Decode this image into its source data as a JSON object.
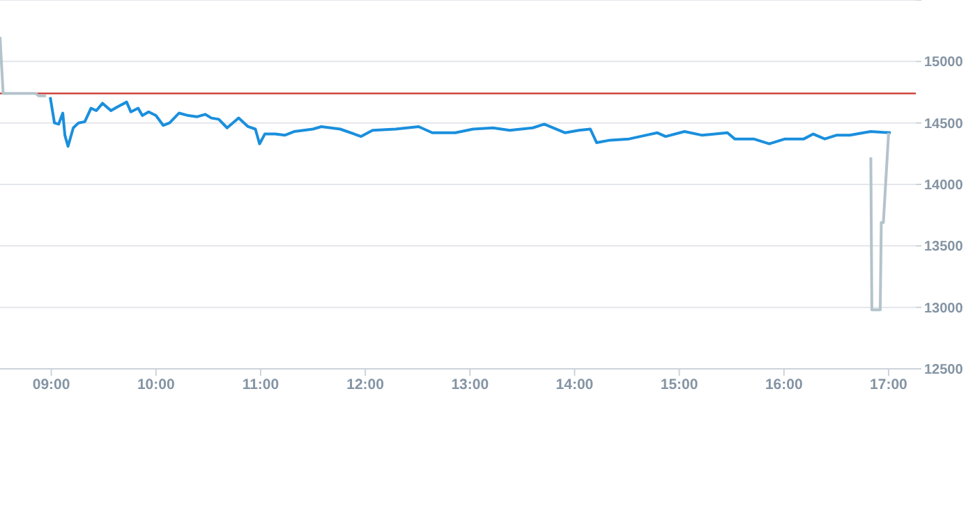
{
  "chart_data": {
    "type": "line",
    "xlim": [
      8.51,
      17.26
    ],
    "xticks": [
      {
        "value": 9,
        "label": "09:00"
      },
      {
        "value": 10,
        "label": "10:00"
      },
      {
        "value": 11,
        "label": "11:00"
      },
      {
        "value": 12,
        "label": "12:00"
      },
      {
        "value": 13,
        "label": "13:00"
      },
      {
        "value": 14,
        "label": "14:00"
      },
      {
        "value": 15,
        "label": "15:00"
      },
      {
        "value": 16,
        "label": "16:00"
      },
      {
        "value": 17,
        "label": "17:00"
      }
    ],
    "ylim": [
      12500,
      15500
    ],
    "yticks": [
      12500,
      13000,
      13500,
      14000,
      14500,
      15000,
      {
        "value": 15500,
        "label": null
      }
    ],
    "grid": "y",
    "marker": "none",
    "line_style": "solid",
    "ref_lines": [
      {
        "axis": "y",
        "value": 14740,
        "color": "#d0463c"
      }
    ],
    "series": [
      {
        "color": "#b4c3cc",
        "x": [
          8.51,
          8.54,
          8.85,
          8.88,
          8.95
        ],
        "values": [
          15200,
          14740,
          14740,
          14720,
          14720
        ]
      },
      {
        "color": "#1a8fdd",
        "x": [
          8.99,
          9.03,
          9.07,
          9.11,
          9.13,
          9.16,
          9.21,
          9.26,
          9.32,
          9.38,
          9.43,
          9.49,
          9.57,
          9.63,
          9.72,
          9.76,
          9.83,
          9.87,
          9.93,
          10.0,
          10.07,
          10.13,
          10.22,
          10.31,
          10.39,
          10.47,
          10.53,
          10.6,
          10.68,
          10.79,
          10.88,
          10.95,
          10.99,
          11.04,
          11.14,
          11.23,
          11.32,
          11.5,
          11.58,
          11.76,
          11.96,
          12.07,
          12.29,
          12.51,
          12.64,
          12.86,
          13.03,
          13.22,
          13.38,
          13.6,
          13.71,
          13.91,
          14.04,
          14.15,
          14.21,
          14.34,
          14.52,
          14.68,
          14.79,
          14.87,
          15.05,
          15.22,
          15.46,
          15.53,
          15.71,
          15.86,
          16.01,
          16.19,
          16.28,
          16.39,
          16.5,
          16.63,
          16.76,
          16.83,
          17.02
        ],
        "values": [
          14710,
          14500,
          14490,
          14580,
          14400,
          14310,
          14460,
          14500,
          14510,
          14620,
          14600,
          14660,
          14600,
          14630,
          14670,
          14590,
          14620,
          14560,
          14590,
          14560,
          14480,
          14500,
          14580,
          14560,
          14550,
          14570,
          14540,
          14530,
          14460,
          14540,
          14470,
          14450,
          14330,
          14410,
          14410,
          14400,
          14430,
          14450,
          14470,
          14450,
          14390,
          14440,
          14450,
          14470,
          14420,
          14420,
          14450,
          14460,
          14440,
          14460,
          14490,
          14420,
          14440,
          14450,
          14340,
          14360,
          14370,
          14400,
          14420,
          14390,
          14430,
          14400,
          14420,
          14370,
          14370,
          14330,
          14370,
          14370,
          14410,
          14370,
          14400,
          14400,
          14420,
          14430,
          14420
        ]
      },
      {
        "color": "#b4c3cc",
        "x": [
          16.83,
          16.84,
          16.92,
          16.93,
          16.95,
          17.0
        ],
        "values": [
          14220,
          12980,
          12980,
          13690,
          13690,
          14420
        ]
      }
    ]
  }
}
